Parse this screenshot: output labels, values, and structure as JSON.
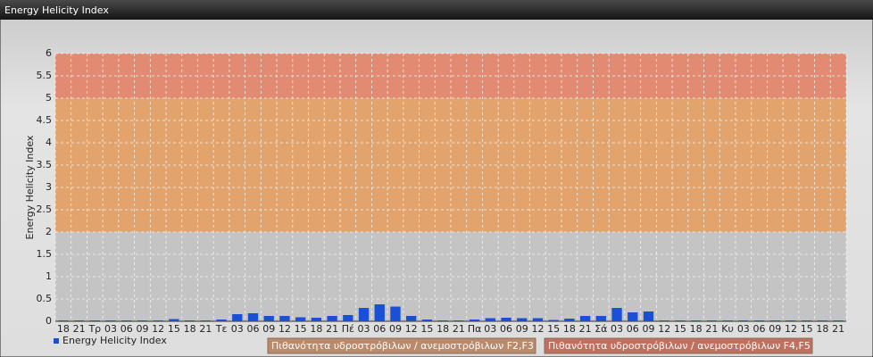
{
  "header": {
    "title": "Energy Helicity Index"
  },
  "chart_data": {
    "type": "bar",
    "y_label": "Energy Helicity Index",
    "categories": [
      "18",
      "21",
      "Τρ",
      "03",
      "06",
      "09",
      "12",
      "15",
      "18",
      "21",
      "Τε",
      "03",
      "06",
      "09",
      "12",
      "15",
      "18",
      "21",
      "Πέ",
      "03",
      "06",
      "09",
      "12",
      "15",
      "18",
      "21",
      "Πα",
      "03",
      "06",
      "09",
      "12",
      "15",
      "18",
      "21",
      "Σά",
      "03",
      "06",
      "09",
      "12",
      "15",
      "18",
      "21",
      "Κυ",
      "03",
      "06",
      "09",
      "12",
      "15",
      "18",
      "21"
    ],
    "series": [
      {
        "name": "Energy Helicity Index",
        "color": "#1a4fd6",
        "values": [
          0.02,
          0.02,
          0.02,
          0.02,
          0.02,
          0.02,
          0.02,
          0.05,
          0.02,
          0.02,
          0.04,
          0.16,
          0.18,
          0.12,
          0.12,
          0.09,
          0.08,
          0.12,
          0.14,
          0.3,
          0.38,
          0.33,
          0.12,
          0.04,
          0.02,
          0.02,
          0.04,
          0.07,
          0.08,
          0.07,
          0.07,
          0.03,
          0.06,
          0.12,
          0.12,
          0.3,
          0.2,
          0.22,
          0.02,
          0.02,
          0.02,
          0.02,
          0.02,
          0.02,
          0.02,
          0.02,
          0.02,
          0.02,
          0.02,
          0.02
        ]
      }
    ],
    "ylim": [
      0,
      6
    ],
    "yticks": [
      0,
      0.5,
      1,
      1.5,
      2,
      2.5,
      3,
      3.5,
      4,
      4.5,
      5,
      5.5,
      6
    ],
    "grid": true,
    "bands": [
      {
        "from": 0,
        "to": 2,
        "color": "#c4c4c4"
      },
      {
        "from": 2,
        "to": 5,
        "color": "#e2a46c",
        "name": "Πιθανότητα υδροστρόβιλων / ανεμοστρόβιλων F2,F3",
        "legend_color": "#b98a6c"
      },
      {
        "from": 5,
        "to": 6,
        "color": "#e28a72",
        "name": "Πιθανότητα υδροστρόβιλων / ανεμοστρόβιλων F4,F5",
        "legend_color": "#c0705f"
      }
    ]
  }
}
